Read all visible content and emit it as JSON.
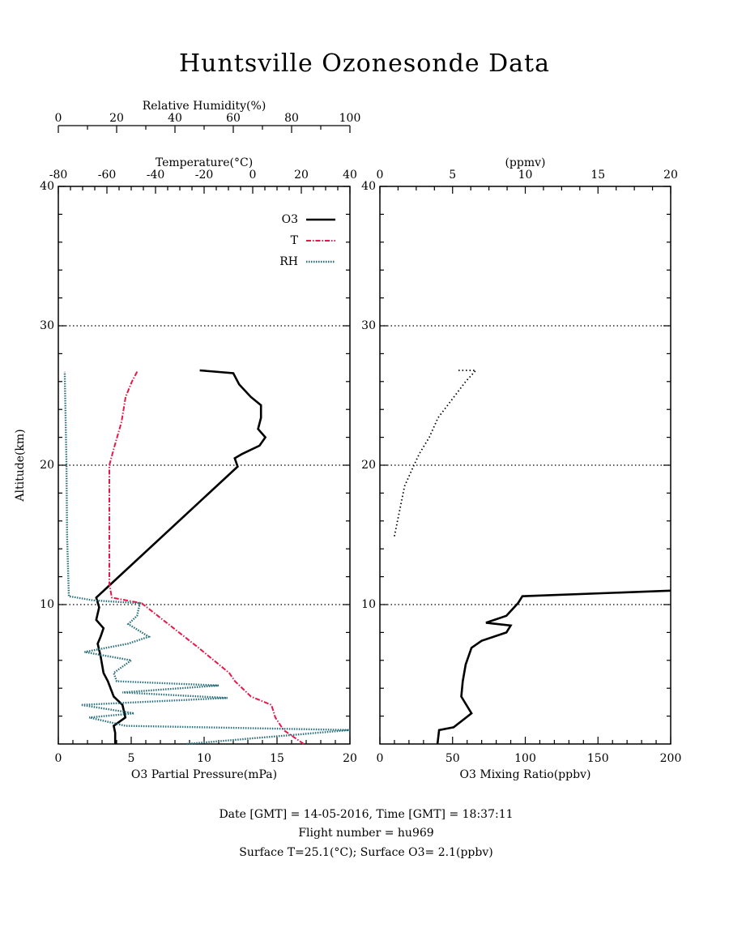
{
  "title": "Huntsville Ozonesonde Data",
  "footer": [
    "Date [GMT] = 14-05-2016,  Time [GMT] = 18:37:11",
    "Flight number = hu969",
    "Surface T=25.1(°C); Surface O3= 2.1(ppbv)"
  ],
  "chart_data": [
    {
      "type": "line",
      "ylabel": "Altitude(km)",
      "ylim": [
        0,
        40
      ],
      "yticks": [
        10,
        20,
        30,
        40
      ],
      "grid": true,
      "legend": "upper right",
      "xlabel": "O3 Partial Pressure(mPa)",
      "xlim": [
        0,
        20
      ],
      "xticks": [
        0,
        5,
        10,
        15,
        20
      ],
      "x2label": "Temperature(°C)",
      "x2lim": [
        -80,
        40
      ],
      "x2ticks": [
        -80,
        -60,
        -40,
        -20,
        0,
        20,
        40
      ],
      "x3label": "Relative Humidity(%)",
      "x3lim": [
        0,
        100
      ],
      "x3ticks": [
        0,
        20,
        40,
        60,
        80,
        100
      ],
      "series": [
        {
          "name": "O3",
          "color": "#000000",
          "style": "solid",
          "axis": "x",
          "altitude": [
            0,
            0.8,
            1.3,
            1.9,
            2.8,
            3.4,
            4.5,
            5.1,
            6.3,
            7.2,
            7.7,
            8.3,
            8.9,
            9.8,
            10.5,
            19.9,
            20.5,
            20.8,
            21.4,
            22,
            22.6,
            23.4,
            24.3,
            24.9,
            25.8,
            26.6,
            26.8
          ],
          "values": [
            3.9,
            3.9,
            3.8,
            4.6,
            4.4,
            3.8,
            3.4,
            3.1,
            2.9,
            2.7,
            2.9,
            3.1,
            2.6,
            2.8,
            2.6,
            12.3,
            12.1,
            12.6,
            13.8,
            14.2,
            13.7,
            13.9,
            13.9,
            13.2,
            12.4,
            12.0,
            9.7
          ]
        },
        {
          "name": "T",
          "color": "#e8174a",
          "style": "dashdot",
          "axis": "x2",
          "altitude": [
            0,
            1.0,
            1.9,
            2.8,
            3.4,
            4.5,
            5.1,
            6.9,
            8.6,
            10.1,
            10.5,
            11.5,
            20,
            21.1,
            23.1,
            24.9,
            26,
            26.8
          ],
          "values": [
            21,
            12.7,
            9.3,
            7.7,
            -0.7,
            -7.3,
            -9.7,
            -22.3,
            -34.7,
            -45.7,
            -58,
            -59,
            -59,
            -57.3,
            -54,
            -52.3,
            -49.7,
            -47.3
          ]
        },
        {
          "name": "RH",
          "color": "#2a6f7a",
          "style": "dotted",
          "axis": "x3",
          "altitude": [
            0,
            0.5,
            1.0,
            1.3,
            1.9,
            2.2,
            2.8,
            3.3,
            3.7,
            4.2,
            4.5,
            5.1,
            6.0,
            6.6,
            7.2,
            7.7,
            8.6,
            9.2,
            10.1,
            10.3,
            10.6,
            15,
            20,
            26.7
          ],
          "values": [
            44,
            72,
            100,
            23,
            10.6,
            26,
            7.8,
            58,
            22,
            55,
            20,
            19,
            25,
            9,
            24,
            31,
            24,
            27,
            28,
            12,
            3.6,
            3,
            2.8,
            2.2
          ]
        }
      ]
    },
    {
      "type": "line",
      "ylim": [
        0,
        40
      ],
      "yticks": [
        10,
        20,
        30,
        40
      ],
      "grid": true,
      "xlabel": "O3 Mixing Ratio(ppbv)",
      "xlim": [
        0,
        200
      ],
      "xticks": [
        0,
        50,
        100,
        150,
        200
      ],
      "x2label": "(ppmv)",
      "x2lim": [
        0,
        20
      ],
      "x2ticks": [
        0,
        5,
        10,
        15,
        20
      ],
      "series": [
        {
          "color": "#000000",
          "style": "solid",
          "axis": "x",
          "altitude": [
            0,
            1.0,
            1.2,
            2.2,
            3.4,
            4.5,
            5.7,
            6.9,
            7.4,
            8.0,
            8.5,
            8.7,
            9.2,
            10.1,
            10.6,
            11.0
          ],
          "values": [
            39.6,
            40.7,
            50.7,
            63,
            56,
            57,
            59,
            63,
            70,
            87,
            90,
            73,
            87,
            95,
            98,
            200
          ]
        },
        {
          "color": "#000000",
          "style": "dotted-thin",
          "axis": "x2",
          "altitude": [
            14.9,
            18.5,
            19.9,
            20.8,
            22,
            23.4,
            24.9,
            26,
            26.8,
            26.8
          ],
          "values": [
            1.0,
            1.7,
            2.3,
            2.7,
            3.4,
            4.0,
            5.1,
            5.9,
            6.6,
            5.3
          ]
        }
      ]
    }
  ]
}
